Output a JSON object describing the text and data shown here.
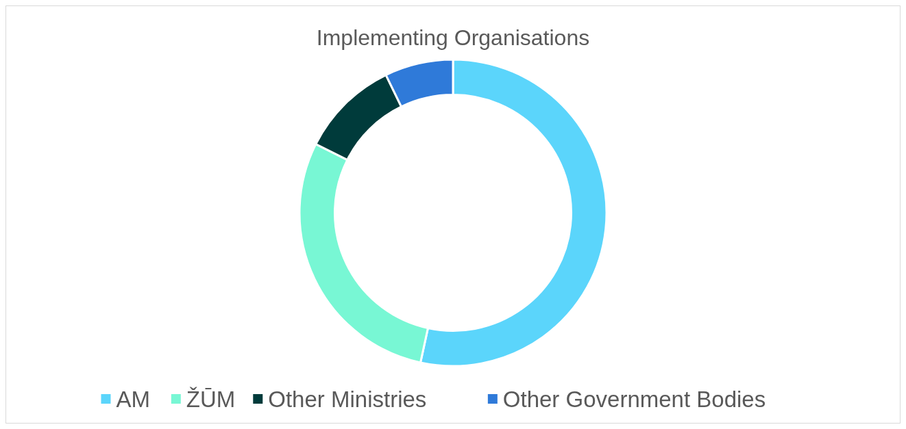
{
  "chart_data": {
    "type": "donut",
    "title": "Implementing Organisations",
    "categories": [
      "AM",
      "ŽŪM",
      "Other Ministries",
      "Other Government Bodies"
    ],
    "values": [
      53.4,
      29,
      10.4,
      7.2
    ],
    "colors": [
      "#5bd5fb",
      "#78f7d4",
      "#003b3b",
      "#2f7ad9"
    ],
    "legend": "bottom"
  }
}
